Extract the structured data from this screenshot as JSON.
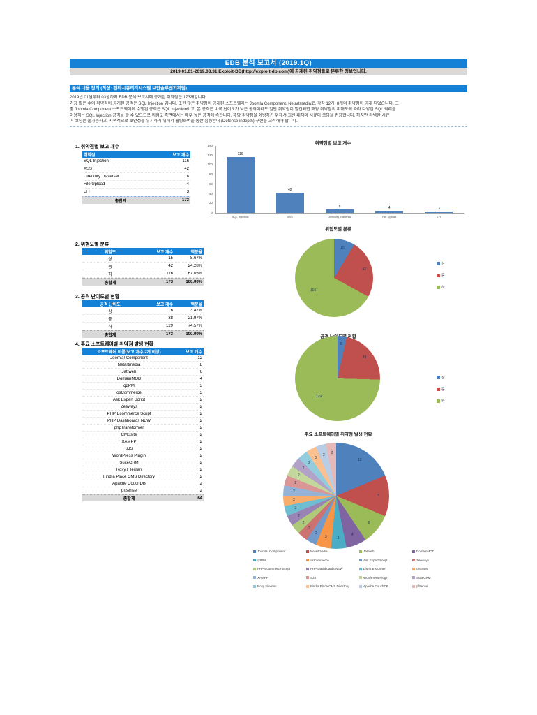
{
  "report": {
    "title": "EDB 분석 보고서 (2019.1Q)",
    "subtitle": "2019.01.01-2019.03.31 Exploit-DB(http://exploit-db.com)에 공개된 취약점들로 분류한 정보입니다.",
    "summary_header": "분석 내용 정리 (작성: 펜타시큐리티시스템 보안솔루션기획팀)",
    "summary_lines": [
      "2019년 01월부터 03월까지 EDB 분석 보고서에 공개된 취약점은 173개입니다.",
      "가장 많은 수의 취약점이 공개된 공격은 SQL Injection 입니다. 또한 많은 취약점이 공개된 소프트웨어는 Joomla Component, Netartmedia로, 각각 12개, 8개의 취약점이 공개 되었습니다. 그",
      "중 Joomla Component 소프트웨어에 수행된 공격은 SQL Injection이고, 본 공격은 비록 난이도가 낮은 공격이라도 일단 취약점이 발견되면 해당 취약점의 피해도에 따라 다양한 SQL 쿼리를",
      "이용하는 SQL Injection 공격을 할 수 있으므로 위험도 측면에서는 매우 높은 공격에 속합니다. 해당 취약점을 예방하기 위해서 최신 패치와 시큐어 코딩을 권장합니다. 하지만 완벽한 시큐",
      "어 코딩은 불가능하고, 지속적으로 보안성을 유지하기 위해서 웹방화벽을 통한 심층방어 (Defense indepth) 구현을 고려해야 합니다."
    ]
  },
  "colors": {
    "header_blue": "#1581D6",
    "total_row_gray": "#D9D9D9",
    "bar_blue": "#4F81BD"
  },
  "tables": [
    {
      "heading": "1. 취약점별 보고 개수",
      "columns": [
        "취약점",
        "보고 개수"
      ],
      "rows": [
        [
          "SQL Injection",
          "116"
        ],
        [
          "XSS",
          "42"
        ],
        [
          "Directory Traversal",
          "8"
        ],
        [
          "File Upload",
          "4"
        ],
        [
          "LFI",
          "3"
        ]
      ],
      "total": [
        "총합계",
        "173"
      ]
    },
    {
      "heading": "2. 위험도별 분류",
      "columns": [
        "위험도",
        "보고 개수",
        "백분율"
      ],
      "rows": [
        [
          "상",
          "15",
          "8.67%"
        ],
        [
          "중",
          "42",
          "24.28%"
        ],
        [
          "하",
          "116",
          "67.05%"
        ]
      ],
      "total": [
        "총합계",
        "173",
        "100.00%"
      ]
    },
    {
      "heading": "3. 공격 난이도별 현황",
      "columns": [
        "공격 난이도",
        "보고 개수",
        "백분율"
      ],
      "rows": [
        [
          "상",
          "6",
          "3.47%"
        ],
        [
          "중",
          "38",
          "21.97%"
        ],
        [
          "하",
          "129",
          "74.57%"
        ]
      ],
      "total": [
        "총합계",
        "173",
        "100.00%"
      ]
    },
    {
      "heading": "4. 주요 소프트웨어별 취약점 발생 현황",
      "columns": [
        "소프트웨어 이름(보고 개수 2개 이상)",
        "보고 개수"
      ],
      "rows": [
        [
          "Joomla! Component",
          "12"
        ],
        [
          "Netartmedia",
          "8"
        ],
        [
          "Jattweb",
          "6"
        ],
        [
          "DomainMOD",
          "4"
        ],
        [
          "qdPM",
          "3"
        ],
        [
          "osCommerce",
          "3"
        ],
        [
          "Ask Expert Script",
          "2"
        ],
        [
          "Zeeways",
          "2"
        ],
        [
          "PHP Ecommerce Script",
          "2"
        ],
        [
          "PHP Dashboards NEW",
          "2"
        ],
        [
          "phpTransformer",
          "2"
        ],
        [
          "CMSsite",
          "2"
        ],
        [
          "XAMPP",
          "2"
        ],
        [
          "SJS",
          "2"
        ],
        [
          "WordPress Plugin",
          "2"
        ],
        [
          "SuiteCRM",
          "2"
        ],
        [
          "Roxy Fileman",
          "2"
        ],
        [
          "Find a Place CMS Directory",
          "2"
        ],
        [
          "Apache CouchDB",
          "2"
        ],
        [
          "pfSense",
          "2"
        ]
      ],
      "total": [
        "총합계",
        "64"
      ]
    }
  ],
  "chart_data": [
    {
      "type": "bar",
      "title": "취약점별 보고 개수",
      "categories": [
        "SQL Injection",
        "XSS",
        "Directory Traversal",
        "File Upload",
        "LFI"
      ],
      "values": [
        116,
        42,
        8,
        4,
        3
      ],
      "xlabel": "",
      "ylabel": "",
      "ylim": [
        0,
        140
      ],
      "ytick_step": 20,
      "grid": false,
      "bar_color": "#4F81BD",
      "legend_position": "none"
    },
    {
      "type": "pie",
      "title": "위험도별 분류",
      "categories": [
        "상",
        "중",
        "하"
      ],
      "values": [
        15,
        42,
        116
      ],
      "colors": [
        "#4F81BD",
        "#C0504D",
        "#9BBB59"
      ],
      "legend_position": "right"
    },
    {
      "type": "pie",
      "title": "공격 난이도별 현황",
      "categories": [
        "상",
        "중",
        "하"
      ],
      "values": [
        6,
        38,
        129
      ],
      "colors": [
        "#4F81BD",
        "#C0504D",
        "#9BBB59"
      ],
      "legend_position": "right"
    },
    {
      "type": "pie",
      "title": "주요 소프트웨어별 취약점 발생 현황",
      "categories": [
        "Joomla! Component",
        "Netartmedia",
        "Jattweb",
        "DomainMOD",
        "qdPM",
        "osCommerce",
        "Ask Expert Script",
        "Zeeways",
        "PHP Ecommerce Script",
        "PHP Dashboards NEW",
        "phpTransformer",
        "CMSsite",
        "XAMPP",
        "SJS",
        "WordPress Plugin",
        "SuiteCRM",
        "Roxy Fileman",
        "Find a Place CMS Directory",
        "Apache CouchDB",
        "pfSense"
      ],
      "values": [
        12,
        8,
        6,
        4,
        3,
        3,
        2,
        2,
        2,
        2,
        2,
        2,
        2,
        2,
        2,
        2,
        2,
        2,
        2,
        2
      ],
      "colors": [
        "#4F81BD",
        "#C0504D",
        "#9BBB59",
        "#8064A2",
        "#4BACC6",
        "#F79646",
        "#729ACA",
        "#CC7371",
        "#AFC97A",
        "#9983B5",
        "#6FBDD1",
        "#F9AD6B",
        "#95B3D7",
        "#D99694",
        "#C3D69B",
        "#B3A2C7",
        "#93CDDD",
        "#FAC090",
        "#B9CDE5",
        "#E6B9B8"
      ],
      "legend_position": "bottom"
    }
  ]
}
